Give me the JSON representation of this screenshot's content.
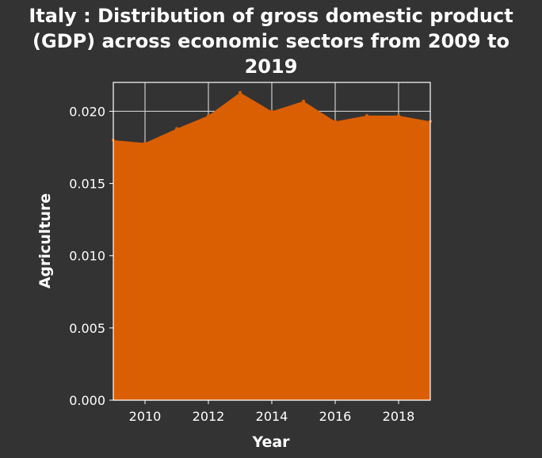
{
  "chart_data": {
    "type": "area",
    "title_lines": [
      "Italy : Distribution of gross domestic product",
      "(GDP) across economic sectors from 2009 to",
      "2019"
    ],
    "xlabel": "Year",
    "ylabel": "Agriculture",
    "xlim": [
      2009,
      2019
    ],
    "ylim": [
      0,
      0.022
    ],
    "x_ticks": [
      2010,
      2012,
      2014,
      2016,
      2018
    ],
    "y_ticks": [
      0.0,
      0.005,
      0.01,
      0.015,
      0.02
    ],
    "y_tick_labels": [
      "0.000",
      "0.005",
      "0.010",
      "0.015",
      "0.020"
    ],
    "grid": true,
    "x": [
      2009,
      2010,
      2011,
      2012,
      2013,
      2014,
      2015,
      2016,
      2017,
      2018,
      2019
    ],
    "series": [
      {
        "values": [
          0.018,
          0.0178,
          0.0188,
          0.0197,
          0.0213,
          0.02,
          0.0207,
          0.0193,
          0.0197,
          0.0197,
          0.0193
        ]
      }
    ],
    "colors": {
      "fill": "#d95f02",
      "background": "#333333",
      "grid": "#cccccc",
      "text": "#ffffff"
    }
  }
}
